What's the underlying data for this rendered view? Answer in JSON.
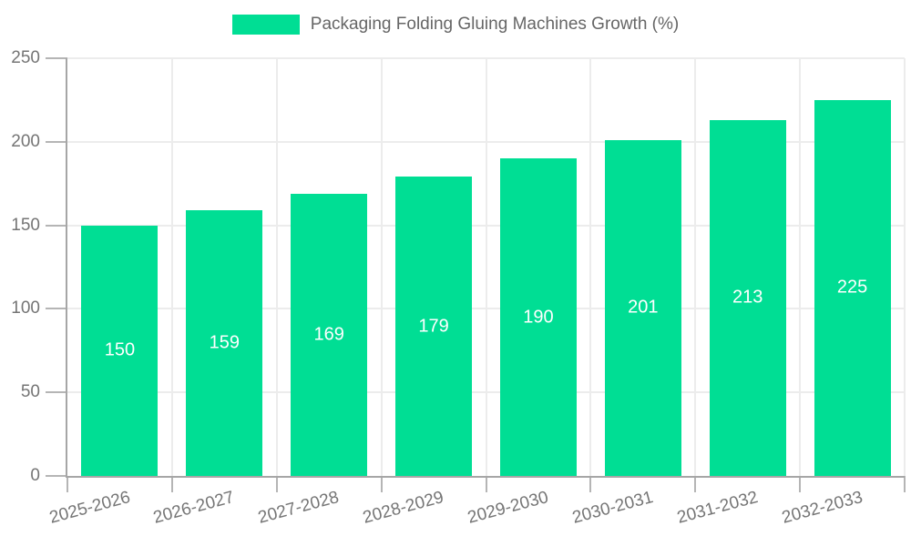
{
  "chart_data": {
    "type": "bar",
    "title": "Packaging Folding Gluing Machines Growth (%)",
    "categories": [
      "2025-2026",
      "2026-2027",
      "2027-2028",
      "2028-2029",
      "2029-2030",
      "2030-2031",
      "2031-2032",
      "2032-2033"
    ],
    "values": [
      150,
      159,
      169,
      179,
      190,
      201,
      213,
      225
    ],
    "xlabel": "",
    "ylabel": "",
    "ylim": [
      0,
      250
    ],
    "yticks": [
      0,
      50,
      100,
      150,
      200,
      250
    ],
    "grid": true,
    "legend_position": "top",
    "bar_color": "#00DE94",
    "bar_label_color": "#FFFFFF",
    "grid_color": "#ECECEC",
    "axis_color": "#A6A6A6",
    "tick_color": "#B5B5B5",
    "tick_label_color": "#757575",
    "legend_text_color": "#666666",
    "background_color": "#FFFFFF"
  }
}
